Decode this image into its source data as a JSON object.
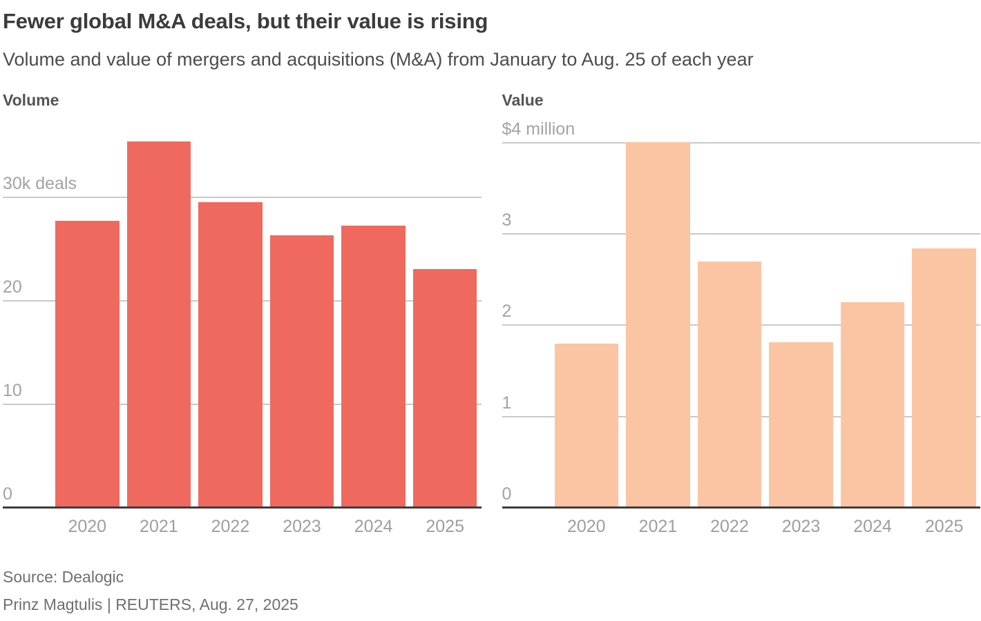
{
  "header": {
    "title": "Fewer global M&A deals, but their value is rising",
    "subtitle": "Volume and value of mergers and acquisitions (M&A) from January to Aug. 25 of each year"
  },
  "footer": {
    "source": "Source: Dealogic",
    "byline": "Prinz Magtulis | REUTERS, Aug. 27, 2025"
  },
  "colors": {
    "volume_bar": "#f0695e",
    "value_bar": "#fbc5a3",
    "gridline": "#c9c9c9",
    "baseline": "#3d3d3f",
    "axis_text": "#a3a3a5",
    "title_text": "#3b3b3d",
    "subtitle_text": "#4c4c4e",
    "footer_text": "#6f6f71"
  },
  "chart_data": [
    {
      "type": "bar",
      "title": "Volume",
      "categories": [
        "2020",
        "2021",
        "2022",
        "2023",
        "2024",
        "2025"
      ],
      "values": [
        27.8,
        35.5,
        29.6,
        26.4,
        27.3,
        23.1
      ],
      "value_unit": "thousand deals",
      "bar_color": "#f0695e",
      "yticks": [
        {
          "value": 0,
          "label": "0"
        },
        {
          "value": 10,
          "label": "10"
        },
        {
          "value": 20,
          "label": "20"
        },
        {
          "value": 30,
          "label": "30k deals"
        }
      ],
      "ylim": [
        0,
        37.9
      ],
      "grid": true,
      "legend": "none"
    },
    {
      "type": "bar",
      "title": "Value",
      "categories": [
        "2020",
        "2021",
        "2022",
        "2023",
        "2024",
        "2025"
      ],
      "values": [
        1.81,
        4.02,
        2.71,
        1.82,
        2.26,
        2.85
      ],
      "value_unit": "$ million",
      "bar_color": "#fbc5a3",
      "yticks": [
        {
          "value": 0,
          "label": "0"
        },
        {
          "value": 1,
          "label": "1"
        },
        {
          "value": 2,
          "label": "2"
        },
        {
          "value": 3,
          "label": "3"
        },
        {
          "value": 4,
          "label": "$4 million"
        }
      ],
      "ylim": [
        0,
        4.3
      ],
      "grid": true,
      "legend": "none"
    }
  ]
}
